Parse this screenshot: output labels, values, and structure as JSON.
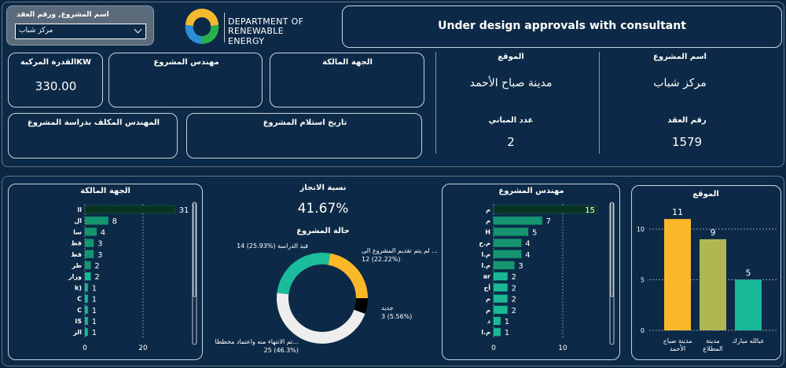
{
  "slicer": {
    "label": "اسم المشروع, ورقم العقد",
    "value": "مركز شباب"
  },
  "logo": {
    "line1": "DEPARTMENT OF",
    "line2": "RENEWABLE ENERGY"
  },
  "status_title": "Under design approvals with consultant",
  "cards": {
    "capacity": {
      "label": "القدرة المركبةKW",
      "value": "330.00"
    },
    "engineer": {
      "label": "مهندس المشروع"
    },
    "owner": {
      "label": "الجهة المالكة"
    },
    "study_engineer": {
      "label": "المهندس المكلف بدراسة المشروع"
    },
    "handover_date": {
      "label": "تاريخ استلام المشروع"
    },
    "location": {
      "label": "الموقع",
      "value": "مدينة صباح الأحمد"
    },
    "project_name": {
      "label": "اسم المشروع",
      "value": "مركز شباب"
    },
    "buildings": {
      "label": "عدد المباني",
      "value": "2"
    },
    "contract": {
      "label": "رقم العقد",
      "value": "1579"
    }
  },
  "progress": {
    "label": "نسبة الانجاز",
    "value": "41.67%"
  },
  "chart_data": [
    {
      "type": "bar",
      "orientation": "horizontal",
      "title": "الجهة المالكة",
      "categories": [
        "اا",
        "ال",
        "سا",
        "قط",
        "قط",
        "طر",
        "وزار",
        "k)",
        "C",
        "C",
        "IS",
        "الر"
      ],
      "values": [
        31,
        8,
        4,
        3,
        3,
        2,
        2,
        1,
        1,
        1,
        1,
        1
      ],
      "xticks": [
        "0",
        "20"
      ],
      "xlim": [
        0,
        37
      ],
      "grid": true
    },
    {
      "type": "pie",
      "title": "حالة المشروع",
      "donut": true,
      "slices": [
        {
          "label": "لم يتم تقديم المشروع الى ...",
          "value": 12,
          "percent": "22.22%",
          "color": "#fbb829",
          "text": "12 (22.22%)"
        },
        {
          "label": "جديد",
          "value": 3,
          "percent": "5.56%",
          "color": "#000000",
          "text": "3 (5.56%)"
        },
        {
          "label": "تم الانتهاء منه واعتماد مخططا...",
          "value": 25,
          "percent": "46.3%",
          "color": "#eeeeee",
          "text": "25 (46.3%)"
        },
        {
          "label": "قيد الدراسة",
          "value": 14,
          "percent": "25.93%",
          "color": "#1abc9c",
          "text": "14 (25.93%)"
        }
      ]
    },
    {
      "type": "bar",
      "orientation": "horizontal",
      "title": "مهندس المشروع",
      "categories": [
        "م",
        "م",
        "H",
        "م.ح",
        "م.ا",
        "م.ا",
        "ar",
        "أح",
        "م",
        "م",
        "د",
        "م.ا"
      ],
      "values": [
        15,
        7,
        5,
        4,
        4,
        3,
        2,
        2,
        2,
        2,
        1,
        1
      ],
      "xticks": [
        "0",
        "10"
      ],
      "xlim": [
        0,
        17
      ],
      "grid": true
    },
    {
      "type": "bar",
      "orientation": "vertical",
      "title": "الموقع",
      "categories": [
        "مدينة صباح الأحمد",
        "مدينة المطلاع",
        "عبالله مبارك"
      ],
      "values": [
        11,
        9,
        5
      ],
      "colors": [
        "#fbb829",
        "#b0b752",
        "#17b897"
      ],
      "yticks": [
        "0",
        "5",
        "10"
      ],
      "ylim": [
        0,
        12.5
      ],
      "grid": true
    }
  ]
}
